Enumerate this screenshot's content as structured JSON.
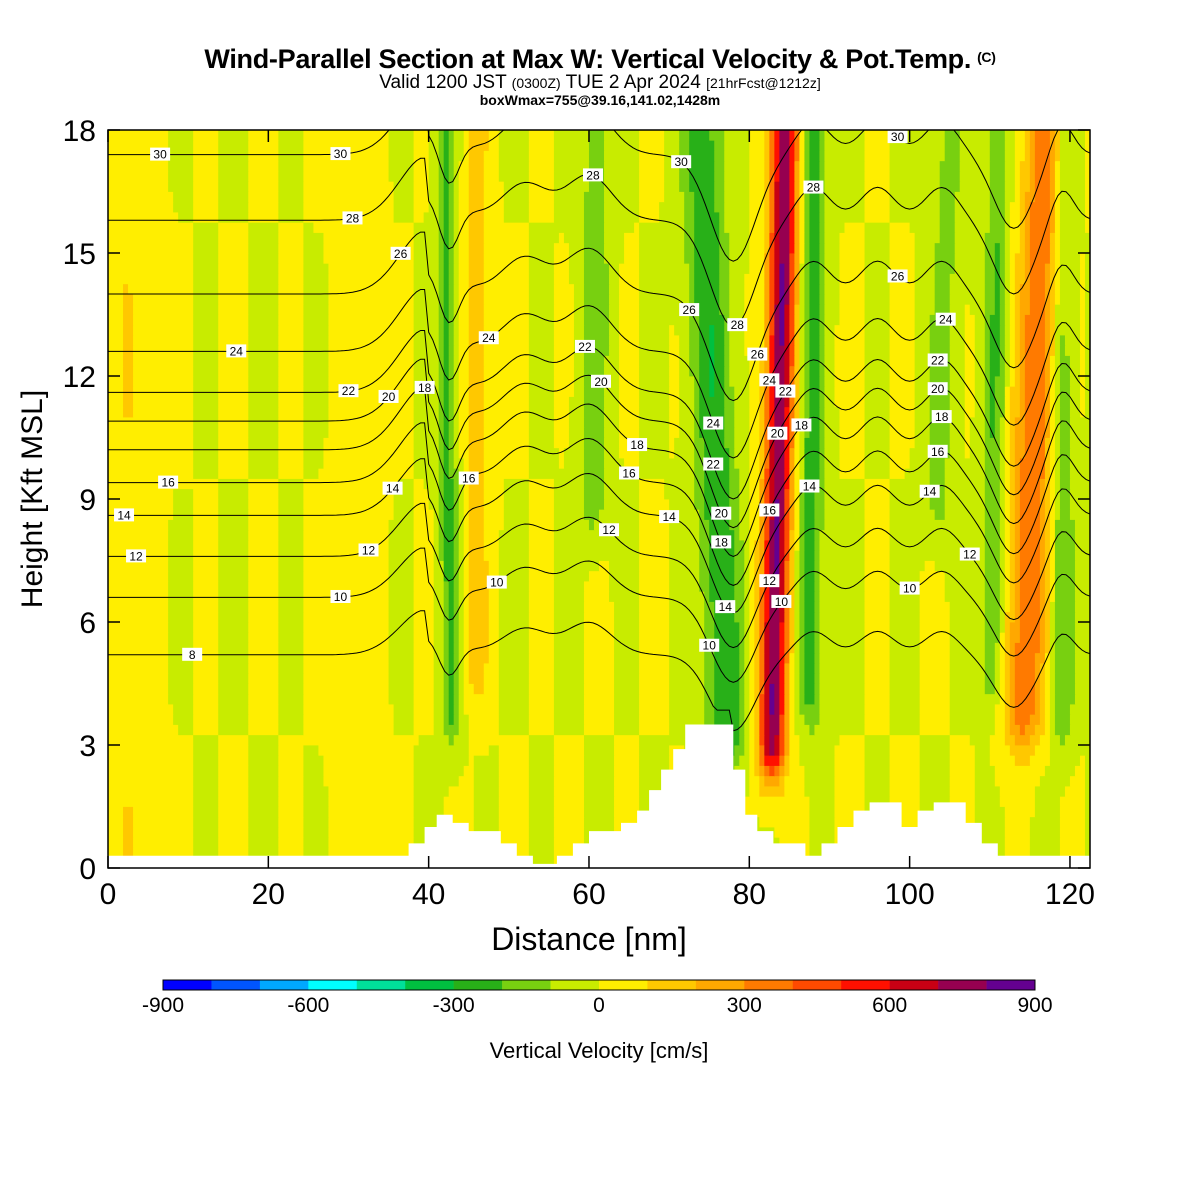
{
  "header": {
    "title": "Wind-Parallel Section at Max W: Vertical Velocity & Pot.Temp.",
    "copyright": "(C)",
    "valid_a": "Valid 1200 JST",
    "valid_utc": "(0300Z)",
    "valid_b": "TUE 2 Apr 2024",
    "forecast": "[21hrFcst@1212z]",
    "boxinfo": "boxWmax=755@39.16,141.02,1428m"
  },
  "colors": {
    "axis": "#000000",
    "terrain": "#ffffff",
    "contour": "#000000"
  },
  "chart_data": {
    "type": "heatmap",
    "title": "Wind-Parallel Section at Max W: Vertical Velocity & Pot.Temp.",
    "xlabel": "Distance [nm]",
    "ylabel": "Height [Kft MSL]",
    "xlim": [
      0,
      122.5
    ],
    "ylim": [
      0,
      18
    ],
    "x_ticks": [
      0,
      20,
      40,
      60,
      80,
      100,
      120
    ],
    "y_ticks": [
      0,
      3,
      6,
      9,
      12,
      15,
      18
    ],
    "colorbar": {
      "label": "Vertical Velocity [cm/s]",
      "ticks": [
        -900,
        -600,
        -300,
        0,
        300,
        600,
        900
      ],
      "bounds": [
        -900,
        -800,
        -700,
        -600,
        -500,
        -400,
        -300,
        -200,
        -100,
        0,
        100,
        200,
        300,
        400,
        500,
        600,
        700,
        800,
        900
      ],
      "colors": [
        "#0000ff",
        "#0055ff",
        "#00a8ff",
        "#00ffff",
        "#00e09a",
        "#00c040",
        "#28b018",
        "#78d010",
        "#c8ec00",
        "#ffee00",
        "#ffc800",
        "#ffa800",
        "#ff7a00",
        "#ff4a00",
        "#ff1000",
        "#c80014",
        "#960050",
        "#640090"
      ]
    },
    "velocity_features": [
      {
        "x": 82.5,
        "x_top": 84.5,
        "base": 3.3,
        "amplitude": 800,
        "width": 1.7
      },
      {
        "x": 78,
        "x_top": 74,
        "base": 3.5,
        "amplitude": -280,
        "width": 2.6
      },
      {
        "x": 87.5,
        "x_top": 88,
        "base": 4.5,
        "amplitude": -250,
        "width": 1.5
      },
      {
        "x": 113.5,
        "x_top": 117,
        "base": 4,
        "amplitude": 400,
        "width": 2.5
      },
      {
        "x": 110,
        "x_top": 111,
        "base": 5,
        "amplitude": -200,
        "width": 1.4
      },
      {
        "x": 43,
        "x_top": 42,
        "base": 4,
        "amplitude": -220,
        "width": 1.2
      },
      {
        "x": 46,
        "x_top": 46,
        "base": 5,
        "amplitude": 150,
        "width": 1.5
      },
      {
        "x": 60,
        "x_top": 61,
        "base": 9,
        "amplitude": -150,
        "width": 2
      },
      {
        "x": 119,
        "x_top": 119,
        "base": 4,
        "amplitude": -200,
        "width": 1.5
      },
      {
        "x": 102,
        "x_top": 105,
        "base": 9,
        "amplitude": -130,
        "width": 2
      },
      {
        "x": 31,
        "x_top": 31,
        "base": 0,
        "amplitude": 80,
        "width": 2.5
      },
      {
        "x": 3,
        "x_top": 3,
        "base": 0,
        "amplitude": 90,
        "width": 3
      }
    ],
    "terrain": {
      "x": [
        0,
        34.5,
        34.5,
        37.5,
        37.5,
        39.5,
        39.5,
        41,
        41,
        43,
        43,
        45,
        45,
        49,
        49,
        51,
        51,
        53,
        53,
        56,
        56,
        58,
        58,
        60,
        60,
        64,
        64,
        66,
        66,
        67.5,
        67.5,
        69,
        69,
        70.5,
        70.5,
        72,
        72,
        73.5,
        73.5,
        78,
        78,
        79.5,
        79.5,
        81,
        81,
        83,
        83,
        87,
        87,
        89,
        89,
        91,
        91,
        93,
        93,
        95,
        95,
        99,
        99,
        101,
        101,
        103,
        103,
        107,
        107,
        109,
        109,
        111,
        111,
        113,
        113,
        122.5
      ],
      "height": [
        0.3,
        0.3,
        0.3,
        0.3,
        0.6,
        0.6,
        1.0,
        1.0,
        1.3,
        1.3,
        1.1,
        1.1,
        0.9,
        0.9,
        0.6,
        0.6,
        0.3,
        0.3,
        0.1,
        0.1,
        0.3,
        0.3,
        0.6,
        0.6,
        0.9,
        0.9,
        1.1,
        1.1,
        1.4,
        1.4,
        1.9,
        1.9,
        2.4,
        2.4,
        2.9,
        2.9,
        3.5,
        3.5,
        3.5,
        3.5,
        2.4,
        2.4,
        1.3,
        1.3,
        0.9,
        0.9,
        0.6,
        0.6,
        0.3,
        0.3,
        0.6,
        0.6,
        1.0,
        1.0,
        1.4,
        1.4,
        1.6,
        1.6,
        1.0,
        1.0,
        1.4,
        1.4,
        1.6,
        1.6,
        1.1,
        1.1,
        0.6,
        0.6,
        0.3,
        0.3,
        0.3,
        0.3
      ]
    },
    "theta_contours": [
      {
        "level": 8,
        "base": 5.2,
        "label_x": 10.5
      },
      {
        "level": 10,
        "base": 6.6,
        "label_x": 29,
        "labels": [
          {
            "x": 29,
            "value": 10
          },
          {
            "x": 48.5,
            "value": 10
          },
          {
            "x": 75,
            "value": 10
          },
          {
            "x": 84,
            "value": 10
          },
          {
            "x": 100,
            "value": 10
          }
        ]
      },
      {
        "level": 12,
        "base": 7.6,
        "labels": [
          {
            "x": 3.5,
            "value": 12
          },
          {
            "x": 32.5,
            "value": 12
          },
          {
            "x": 62.5,
            "value": 12
          },
          {
            "x": 82.5,
            "value": 12
          },
          {
            "x": 107.5,
            "value": 12
          }
        ]
      },
      {
        "level": 14,
        "base": 8.6,
        "labels": [
          {
            "x": 2,
            "value": 14
          },
          {
            "x": 35.5,
            "value": 14
          },
          {
            "x": 70,
            "value": 14
          },
          {
            "x": 77,
            "value": 14
          },
          {
            "x": 87.5,
            "value": 14
          },
          {
            "x": 102.5,
            "value": 14
          }
        ]
      },
      {
        "level": 16,
        "base": 9.4,
        "labels": [
          {
            "x": 7.5,
            "value": 16
          },
          {
            "x": 45,
            "value": 16
          },
          {
            "x": 65,
            "value": 16
          },
          {
            "x": 82.5,
            "value": 16
          },
          {
            "x": 103.5,
            "value": 16
          }
        ]
      },
      {
        "level": 18,
        "base": 10.2,
        "labels": [
          {
            "x": 39.5,
            "value": 18
          },
          {
            "x": 66,
            "value": 18
          },
          {
            "x": 76.5,
            "value": 18
          },
          {
            "x": 86.5,
            "value": 18
          },
          {
            "x": 104,
            "value": 18
          }
        ]
      },
      {
        "level": 20,
        "base": 10.9,
        "labels": [
          {
            "x": 35,
            "value": 20
          },
          {
            "x": 61.5,
            "value": 20
          },
          {
            "x": 76.5,
            "value": 20
          },
          {
            "x": 83.5,
            "value": 20
          },
          {
            "x": 103.5,
            "value": 20
          }
        ]
      },
      {
        "level": 22,
        "base": 11.6,
        "labels": [
          {
            "x": 30,
            "value": 22
          },
          {
            "x": 59.5,
            "value": 22
          },
          {
            "x": 75.5,
            "value": 22
          },
          {
            "x": 84.5,
            "value": 22
          },
          {
            "x": 103.5,
            "value": 22
          }
        ]
      },
      {
        "level": 24,
        "base": 12.6,
        "labels": [
          {
            "x": 16,
            "value": 24
          },
          {
            "x": 47.5,
            "value": 24
          },
          {
            "x": 75.5,
            "value": 24
          },
          {
            "x": 82.5,
            "value": 24
          },
          {
            "x": 104.5,
            "value": 24
          }
        ]
      },
      {
        "level": 26,
        "base": 14.0,
        "labels": [
          {
            "x": 36.5,
            "value": 26
          },
          {
            "x": 72.5,
            "value": 26
          },
          {
            "x": 81,
            "value": 26
          },
          {
            "x": 98.5,
            "value": 26
          }
        ]
      },
      {
        "level": 28,
        "base": 15.8,
        "labels": [
          {
            "x": 30.5,
            "value": 28
          },
          {
            "x": 60.5,
            "value": 28
          },
          {
            "x": 78.5,
            "value": 28
          },
          {
            "x": 88,
            "value": 28
          }
        ]
      },
      {
        "level": 30,
        "base": 17.4,
        "labels": [
          {
            "x": 6.5,
            "value": 30
          },
          {
            "x": 29,
            "value": 30
          },
          {
            "x": 71.5,
            "value": 30
          },
          {
            "x": 98.5,
            "value": 30
          }
        ]
      }
    ]
  }
}
